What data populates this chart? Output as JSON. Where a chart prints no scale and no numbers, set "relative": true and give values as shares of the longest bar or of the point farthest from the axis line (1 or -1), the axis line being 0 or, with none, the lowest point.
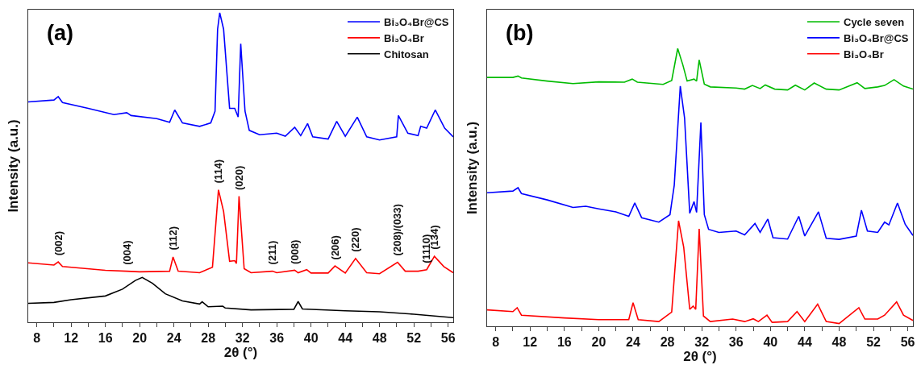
{
  "chart_data": [
    {
      "type": "line",
      "relative": true,
      "xlabel": "2θ (°)",
      "ylabel": "Intensity (a.u.)",
      "xlim": [
        7,
        56.6
      ],
      "xticks": [
        8,
        {
          "value": 10,
          "label": null
        },
        12,
        {
          "value": 14,
          "label": null
        },
        16,
        {
          "value": 18,
          "label": null
        },
        20,
        {
          "value": 22,
          "label": null
        },
        24,
        {
          "value": 26,
          "label": null
        },
        28,
        {
          "value": 30,
          "label": null
        },
        32,
        {
          "value": 34,
          "label": null
        },
        36,
        {
          "value": 38,
          "label": null
        },
        40,
        {
          "value": 42,
          "label": null
        },
        44,
        {
          "value": 46,
          "label": null
        },
        48,
        {
          "value": 50,
          "label": null
        },
        52,
        {
          "value": 54,
          "label": null
        },
        56
      ],
      "legend": "top right",
      "annotations": [
        "(a)",
        {
          "text": "(002)",
          "x": 10.5,
          "y": 0.195
        },
        {
          "text": "(004)",
          "x": 18.5,
          "y": 0.165
        },
        {
          "text": "(112)",
          "x": 23.9,
          "y": 0.211
        },
        {
          "text": "(114)",
          "x": 29.2,
          "y": 0.428
        },
        {
          "text": "(020)",
          "x": 31.6,
          "y": 0.407
        },
        {
          "text": "(211)",
          "x": 35.5,
          "y": 0.165
        },
        {
          "text": "(008)",
          "x": 38.1,
          "y": 0.168
        },
        {
          "text": "(206)",
          "x": 42.8,
          "y": 0.182
        },
        {
          "text": "(220)",
          "x": 45.2,
          "y": 0.206
        },
        {
          "text": "(208)/(033)",
          "x": 50.1,
          "y": 0.194
        },
        {
          "text": "(1110)",
          "x": 53.5,
          "y": 0.17
        },
        {
          "text": "(134)",
          "x": 54.4,
          "y": 0.213
        }
      ],
      "series": [
        {
          "name": "Bi₃O₄Br@CS",
          "color": "#0000ff",
          "x": [
            7,
            10,
            10.5,
            11,
            14,
            17,
            18.5,
            19,
            22,
            23.5,
            24.1,
            25,
            27,
            28.3,
            28.8,
            29.1,
            29.35,
            29.8,
            30.5,
            31.1,
            31.5,
            31.8,
            32.3,
            32.8,
            34,
            36,
            37,
            38.1,
            38.8,
            39.6,
            40.2,
            42,
            43,
            44,
            45.4,
            46.5,
            48,
            50,
            50.2,
            51.3,
            52.5,
            52.8,
            53.5,
            54.5,
            55.6,
            56.6
          ],
          "values": [
            0.712,
            0.718,
            0.729,
            0.71,
            0.691,
            0.671,
            0.677,
            0.668,
            0.658,
            0.646,
            0.686,
            0.644,
            0.633,
            0.644,
            0.682,
            0.947,
            1,
            0.947,
            0.691,
            0.691,
            0.663,
            0.9,
            0.682,
            0.62,
            0.606,
            0.611,
            0.601,
            0.63,
            0.603,
            0.642,
            0.599,
            0.592,
            0.649,
            0.601,
            0.663,
            0.599,
            0.589,
            0.599,
            0.668,
            0.611,
            0.603,
            0.633,
            0.627,
            0.686,
            0.627,
            0.599
          ]
        },
        {
          "name": "Bi₃O₄Br",
          "color": "#ff0000",
          "x": [
            7,
            10,
            10.5,
            11,
            16,
            18.5,
            20,
            23.5,
            23.9,
            24.5,
            27,
            28.5,
            29.2,
            29.8,
            30.5,
            31.1,
            31.3,
            31.6,
            32.2,
            33,
            35.5,
            36,
            38.1,
            38.5,
            39.5,
            40,
            42,
            42.8,
            44,
            45.2,
            46.5,
            48,
            50.1,
            51,
            52.5,
            53.5,
            54.4,
            55.5,
            56.6
          ],
          "values": [
            0.192,
            0.185,
            0.195,
            0.18,
            0.168,
            0.165,
            0.163,
            0.165,
            0.211,
            0.165,
            0.16,
            0.178,
            0.428,
            0.358,
            0.197,
            0.199,
            0.19,
            0.407,
            0.173,
            0.16,
            0.165,
            0.16,
            0.168,
            0.16,
            0.17,
            0.159,
            0.159,
            0.182,
            0.159,
            0.206,
            0.16,
            0.157,
            0.194,
            0.165,
            0.165,
            0.17,
            0.213,
            0.18,
            0.16
          ]
        },
        {
          "name": "Chitosan",
          "color": "#000000",
          "x": [
            7,
            10,
            12,
            16,
            18,
            19.5,
            20.3,
            21.5,
            23,
            25,
            27,
            27.3,
            28,
            29.7,
            30,
            33,
            38,
            38.5,
            39,
            44,
            48,
            52,
            56.6
          ],
          "values": [
            0.061,
            0.064,
            0.073,
            0.085,
            0.107,
            0.135,
            0.145,
            0.126,
            0.092,
            0.069,
            0.059,
            0.066,
            0.05,
            0.052,
            0.046,
            0.04,
            0.042,
            0.067,
            0.043,
            0.037,
            0.034,
            0.026,
            0.015
          ]
        }
      ]
    },
    {
      "type": "line",
      "relative": true,
      "xlabel": "2θ (°)",
      "ylabel": "Intensity (a.u.)",
      "xlim": [
        7,
        56.6
      ],
      "xticks": [
        8,
        {
          "value": 10,
          "label": null
        },
        12,
        {
          "value": 14,
          "label": null
        },
        16,
        {
          "value": 18,
          "label": null
        },
        20,
        {
          "value": 22,
          "label": null
        },
        24,
        {
          "value": 26,
          "label": null
        },
        28,
        {
          "value": 30,
          "label": null
        },
        32,
        {
          "value": 34,
          "label": null
        },
        36,
        {
          "value": 38,
          "label": null
        },
        40,
        {
          "value": 42,
          "label": null
        },
        44,
        {
          "value": 46,
          "label": null
        },
        48,
        {
          "value": 50,
          "label": null
        },
        52,
        {
          "value": 54,
          "label": null
        },
        56
      ],
      "legend": "top right",
      "annotations": [
        "(b)"
      ],
      "series": [
        {
          "name": "Cycle seven",
          "color": "#00bb00",
          "x": [
            7,
            10,
            10.6,
            11,
            14,
            17,
            20,
            23,
            23.9,
            24.5,
            27.5,
            28.5,
            29.2,
            29.8,
            30.3,
            31.1,
            31.4,
            31.7,
            32.3,
            33,
            36,
            37,
            37.9,
            38.8,
            39.4,
            40.5,
            42,
            42.9,
            44,
            45.1,
            46.5,
            48,
            50.1,
            51,
            52.5,
            53.3,
            54.4,
            55.5,
            56.6
          ],
          "values": [
            0.896,
            0.896,
            0.901,
            0.894,
            0.883,
            0.874,
            0.88,
            0.879,
            0.89,
            0.879,
            0.871,
            0.885,
            1,
            0.941,
            0.883,
            0.89,
            0.883,
            0.959,
            0.872,
            0.862,
            0.858,
            0.854,
            0.867,
            0.856,
            0.869,
            0.854,
            0.851,
            0.868,
            0.851,
            0.876,
            0.854,
            0.851,
            0.877,
            0.856,
            0.862,
            0.867,
            0.888,
            0.865,
            0.854
          ]
        },
        {
          "name": "Bi₃O₄Br@CS",
          "color": "#0000ff",
          "x": [
            7,
            10,
            10.6,
            11,
            14,
            17,
            18.5,
            20,
            22,
            23.5,
            24.2,
            25,
            27,
            28.3,
            28.8,
            29.5,
            30,
            30.6,
            31.1,
            31.4,
            31.9,
            32.3,
            32.8,
            34,
            36,
            37,
            38.2,
            38.8,
            39.7,
            40.3,
            42,
            43.3,
            44,
            45.6,
            46.5,
            48,
            50,
            50.6,
            51.3,
            52.5,
            53.3,
            53.8,
            54.8,
            55.7,
            56.6
          ],
          "values": [
            0.481,
            0.487,
            0.499,
            0.478,
            0.455,
            0.428,
            0.432,
            0.423,
            0.412,
            0.396,
            0.444,
            0.391,
            0.375,
            0.402,
            0.508,
            0.865,
            0.75,
            0.407,
            0.449,
            0.41,
            0.734,
            0.402,
            0.349,
            0.338,
            0.343,
            0.329,
            0.37,
            0.338,
            0.386,
            0.319,
            0.314,
            0.396,
            0.325,
            0.412,
            0.317,
            0.313,
            0.325,
            0.418,
            0.343,
            0.338,
            0.375,
            0.365,
            0.444,
            0.367,
            0.327
          ]
        },
        {
          "name": "Bi₃O₄Br",
          "color": "#ff0000",
          "x": [
            7,
            10,
            10.5,
            11,
            16,
            20,
            23.5,
            24,
            24.6,
            27,
            28.5,
            29.3,
            29.9,
            30.6,
            31,
            31.3,
            31.7,
            32.2,
            33,
            35.6,
            37,
            38,
            38.6,
            39.6,
            40.2,
            42,
            43.1,
            44,
            45.5,
            46.5,
            48,
            50.3,
            51,
            52.5,
            53.3,
            54.7,
            55.5,
            56.6
          ],
          "values": [
            0.059,
            0.053,
            0.067,
            0.04,
            0.03,
            0.024,
            0.024,
            0.085,
            0.024,
            0.017,
            0.051,
            0.38,
            0.285,
            0.061,
            0.073,
            0.061,
            0.351,
            0.037,
            0.017,
            0.026,
            0.017,
            0.027,
            0.017,
            0.04,
            0.014,
            0.017,
            0.053,
            0.017,
            0.08,
            0.017,
            0.01,
            0.067,
            0.026,
            0.026,
            0.04,
            0.088,
            0.04,
            0.021
          ]
        }
      ]
    }
  ]
}
